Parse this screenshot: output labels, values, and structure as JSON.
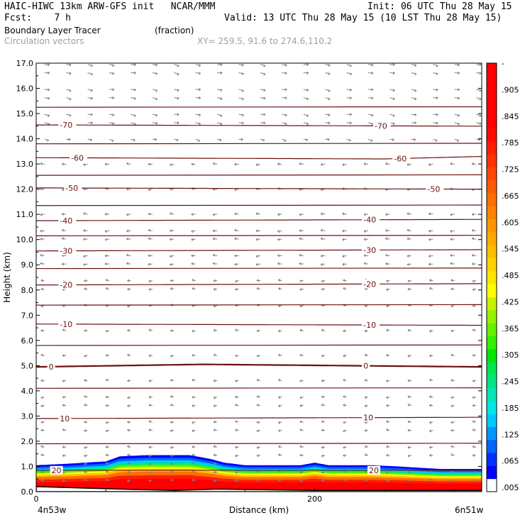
{
  "header": {
    "line1_left": "HAIC-HIWC 13km ARW-GFS init   NCAR/MMM",
    "line1_right": "Init: 06 UTC Thu 28 May 15",
    "line2_left": "Fcst:    7 h",
    "line2_right": "Valid: 13 UTC Thu 28 May 15 (10 LST Thu 28 May 15)",
    "field_name": "Boundary Layer Tracer",
    "field_units": "(fraction)",
    "vector_label": "Circulation vectors",
    "xy_label": "XY= 259.5, 91.6 to 274.6,110.2"
  },
  "colors": {
    "contour": "#6b1010",
    "vector": "#808080",
    "header_gray": "#a0a0a0"
  },
  "chart_data": {
    "type": "heatmap",
    "title": "Boundary Layer Tracer",
    "xlabel": "Distance (km)",
    "ylabel": "Height (km)",
    "xlim": [
      0,
      320
    ],
    "ylim": [
      0,
      17
    ],
    "x_ticks": [
      0,
      200
    ],
    "x_tick_labels": [
      "0",
      "200"
    ],
    "x_end_labels": [
      "4n53w",
      "6n51w"
    ],
    "y_ticks": [
      0,
      1,
      2,
      3,
      4,
      5,
      6,
      7,
      8,
      9,
      10,
      11,
      12,
      13,
      14,
      15,
      16,
      17
    ],
    "y_tick_labels": [
      "0.0",
      "1.0",
      "2.0",
      "3.0",
      "4.0",
      "5.0",
      "6.0",
      "7.0",
      "8.0",
      "9.0",
      "10.0",
      "11.0",
      "12.0",
      "13.0",
      "14.0",
      "15.0",
      "16.0",
      "17.0"
    ],
    "colorbar": {
      "levels": [
        0.005,
        0.035,
        0.065,
        0.095,
        0.125,
        0.155,
        0.185,
        0.215,
        0.245,
        0.275,
        0.305,
        0.335,
        0.365,
        0.395,
        0.425,
        0.455,
        0.485,
        0.515,
        0.545,
        0.575,
        0.605,
        0.635,
        0.665,
        0.695,
        0.725,
        0.755,
        0.785,
        0.815,
        0.845,
        0.875,
        0.905,
        0.935,
        0.965
      ],
      "labels": [
        ".005",
        ".065",
        ".125",
        ".185",
        ".245",
        ".305",
        ".365",
        ".425",
        ".485",
        ".545",
        ".605",
        ".665",
        ".725",
        ".785",
        ".845",
        ".905",
        "-"
      ],
      "colors": [
        "#ffffff",
        "#0000ff",
        "#0032ff",
        "#0064ff",
        "#0096ff",
        "#00c8ff",
        "#00e6e6",
        "#00e6b4",
        "#00e682",
        "#00e650",
        "#00e600",
        "#32f000",
        "#64f000",
        "#96f000",
        "#c8f000",
        "#ffff00",
        "#ffe600",
        "#ffd200",
        "#ffbe00",
        "#ffaa00",
        "#ff9600",
        "#ff8200",
        "#ff6e00",
        "#ff5a00",
        "#ff4600",
        "#ff3200",
        "#ff1e00",
        "#ff0a00",
        "#ff0000",
        "#ff0000",
        "#ff0000",
        "#ff0000",
        "#ff0000"
      ]
    },
    "boundary_layer_top_km": [
      {
        "x": 0,
        "y": 1.05
      },
      {
        "x": 20,
        "y": 1.1
      },
      {
        "x": 50,
        "y": 1.2
      },
      {
        "x": 60,
        "y": 1.4
      },
      {
        "x": 80,
        "y": 1.45
      },
      {
        "x": 110,
        "y": 1.45
      },
      {
        "x": 125,
        "y": 1.3
      },
      {
        "x": 135,
        "y": 1.15
      },
      {
        "x": 150,
        "y": 1.05
      },
      {
        "x": 190,
        "y": 1.05
      },
      {
        "x": 200,
        "y": 1.15
      },
      {
        "x": 210,
        "y": 1.05
      },
      {
        "x": 240,
        "y": 1.05
      },
      {
        "x": 260,
        "y": 1.0
      },
      {
        "x": 290,
        "y": 0.9
      },
      {
        "x": 320,
        "y": 0.9
      }
    ],
    "terrain_km": [
      {
        "x": 0,
        "y": 0.2
      },
      {
        "x": 60,
        "y": 0.1
      },
      {
        "x": 100,
        "y": 0.05
      },
      {
        "x": 130,
        "y": 0.1
      },
      {
        "x": 200,
        "y": 0.05
      },
      {
        "x": 320,
        "y": 0.05
      }
    ],
    "temperature_contours": [
      {
        "value": 20,
        "label": "20",
        "points": [
          [
            0,
            0.85
          ],
          [
            320,
            0.85
          ]
        ],
        "label_x": [
          12,
          240
        ]
      },
      {
        "value": 10,
        "label": "10",
        "points": [
          [
            0,
            2.9
          ],
          [
            320,
            2.95
          ]
        ],
        "label_x": [
          18,
          236
        ]
      },
      {
        "value": 0,
        "label": "0",
        "points": [
          [
            0,
            4.95
          ],
          [
            120,
            5.05
          ],
          [
            320,
            4.95
          ]
        ],
        "label_x": [
          10,
          236
        ]
      },
      {
        "value": -10,
        "label": "-10",
        "points": [
          [
            0,
            6.65
          ],
          [
            320,
            6.6
          ]
        ],
        "label_x": [
          18,
          236
        ]
      },
      {
        "value": -20,
        "label": "-20",
        "points": [
          [
            0,
            8.2
          ],
          [
            320,
            8.25
          ]
        ],
        "label_x": [
          18,
          236
        ]
      },
      {
        "value": -30,
        "label": "-30",
        "points": [
          [
            0,
            9.55
          ],
          [
            320,
            9.6
          ]
        ],
        "label_x": [
          18,
          236
        ]
      },
      {
        "value": -40,
        "label": "-40",
        "points": [
          [
            0,
            10.75
          ],
          [
            320,
            10.8
          ]
        ],
        "label_x": [
          18,
          236
        ]
      },
      {
        "value": -50,
        "label": "-50",
        "points": [
          [
            0,
            12.05
          ],
          [
            320,
            12.0
          ]
        ],
        "label_x": [
          22,
          282
        ]
      },
      {
        "value": -60,
        "label": "-60",
        "points": [
          [
            0,
            13.25
          ],
          [
            250,
            13.2
          ],
          [
            320,
            13.3
          ]
        ],
        "label_x": [
          26,
          258
        ]
      },
      {
        "value": -70,
        "label": "-70",
        "points": [
          [
            0,
            14.55
          ],
          [
            320,
            14.5
          ]
        ],
        "label_x": [
          18,
          244
        ]
      }
    ],
    "extra_contour_heights_km": [
      1.9,
      4.1,
      5.8,
      7.4,
      8.85,
      10.15,
      11.35,
      12.55,
      13.8,
      15.25
    ]
  }
}
